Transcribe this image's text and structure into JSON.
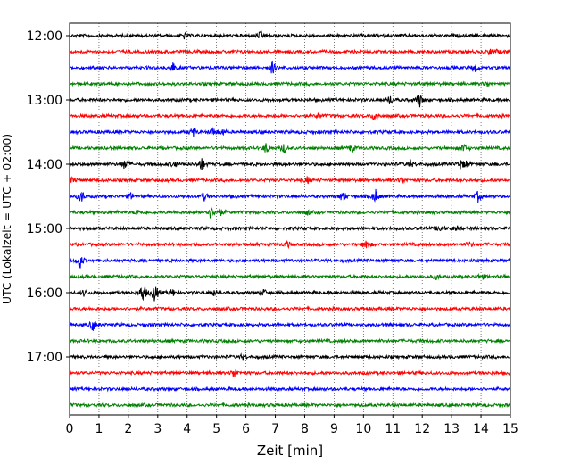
{
  "chart_data": {
    "type": "line",
    "xlabel": "Zeit  [min]",
    "ylabel": "UTC (Lokalzeit = UTC + 02:00)",
    "xlim": [
      0,
      15
    ],
    "x_ticks": [
      "0",
      "1",
      "2",
      "3",
      "4",
      "5",
      "6",
      "7",
      "8",
      "9",
      "10",
      "11",
      "12",
      "13",
      "14",
      "15"
    ],
    "y_ticks": [
      "12:00",
      "13:00",
      "14:00",
      "15:00",
      "16:00",
      "17:00"
    ],
    "grid": "vertical dotted at each minute",
    "trace_interval_min": 15,
    "trace_colors": [
      "#000000",
      "#ff0000",
      "#0000ff",
      "#008000"
    ],
    "traces": [
      {
        "start": "12:00",
        "color": "#000000",
        "events": [
          [
            6.5,
            5
          ],
          [
            3.9,
            3
          ]
        ]
      },
      {
        "start": "12:15",
        "color": "#ff0000",
        "events": [
          [
            14.3,
            4
          ],
          [
            14.6,
            3
          ]
        ]
      },
      {
        "start": "12:30",
        "color": "#0000ff",
        "events": [
          [
            3.5,
            7
          ],
          [
            6.9,
            8
          ],
          [
            13.8,
            6
          ]
        ]
      },
      {
        "start": "12:45",
        "color": "#008000",
        "events": [
          [
            14.2,
            3
          ]
        ]
      },
      {
        "start": "13:00",
        "color": "#000000",
        "events": [
          [
            11.9,
            9
          ],
          [
            10.9,
            5
          ]
        ]
      },
      {
        "start": "13:15",
        "color": "#ff0000",
        "events": [
          [
            10.4,
            7
          ],
          [
            8.5,
            3
          ]
        ]
      },
      {
        "start": "13:30",
        "color": "#0000ff",
        "events": [
          [
            4.2,
            5
          ],
          [
            4.9,
            5
          ],
          [
            5.2,
            4
          ]
        ]
      },
      {
        "start": "13:45",
        "color": "#008000",
        "events": [
          [
            6.7,
            7
          ],
          [
            7.3,
            6
          ],
          [
            9.6,
            4
          ],
          [
            13.4,
            6
          ]
        ]
      },
      {
        "start": "14:00",
        "color": "#000000",
        "events": [
          [
            1.9,
            8
          ],
          [
            4.5,
            8
          ],
          [
            3.6,
            4
          ],
          [
            11.6,
            4
          ],
          [
            13.3,
            5
          ],
          [
            13.5,
            4
          ]
        ]
      },
      {
        "start": "14:15",
        "color": "#ff0000",
        "events": [
          [
            0.1,
            5
          ],
          [
            8.1,
            4
          ],
          [
            11.3,
            4
          ]
        ]
      },
      {
        "start": "14:30",
        "color": "#0000ff",
        "events": [
          [
            0.4,
            8
          ],
          [
            4.6,
            5
          ],
          [
            9.3,
            7
          ],
          [
            10.4,
            9
          ],
          [
            13.9,
            6
          ],
          [
            2.1,
            4
          ]
        ]
      },
      {
        "start": "14:45",
        "color": "#008000",
        "events": [
          [
            4.8,
            7
          ],
          [
            5.1,
            5
          ],
          [
            2.3,
            3
          ],
          [
            8.1,
            3
          ]
        ]
      },
      {
        "start": "15:00",
        "color": "#000000",
        "events": [
          [
            12.6,
            4
          ],
          [
            13.2,
            3
          ]
        ]
      },
      {
        "start": "15:15",
        "color": "#ff0000",
        "events": [
          [
            10.1,
            8
          ],
          [
            7.4,
            4
          ],
          [
            13.6,
            3
          ]
        ]
      },
      {
        "start": "15:30",
        "color": "#0000ff",
        "events": [
          [
            0.35,
            10
          ]
        ]
      },
      {
        "start": "15:45",
        "color": "#008000",
        "events": [
          [
            14.0,
            4
          ],
          [
            12.5,
            3
          ]
        ]
      },
      {
        "start": "16:00",
        "color": "#000000",
        "events": [
          [
            2.5,
            13
          ],
          [
            2.9,
            12
          ],
          [
            3.5,
            5
          ],
          [
            0.5,
            4
          ],
          [
            4.9,
            4
          ],
          [
            6.6,
            4
          ]
        ]
      },
      {
        "start": "16:15",
        "color": "#ff0000",
        "events": []
      },
      {
        "start": "16:30",
        "color": "#0000ff",
        "events": [
          [
            0.8,
            7
          ]
        ]
      },
      {
        "start": "16:45",
        "color": "#008000",
        "events": []
      },
      {
        "start": "17:00",
        "color": "#000000",
        "events": [
          [
            5.9,
            3
          ]
        ]
      },
      {
        "start": "17:15",
        "color": "#ff0000",
        "events": [
          [
            5.6,
            6
          ]
        ]
      },
      {
        "start": "17:30",
        "color": "#0000ff",
        "events": []
      },
      {
        "start": "17:45",
        "color": "#008000",
        "events": []
      }
    ]
  }
}
